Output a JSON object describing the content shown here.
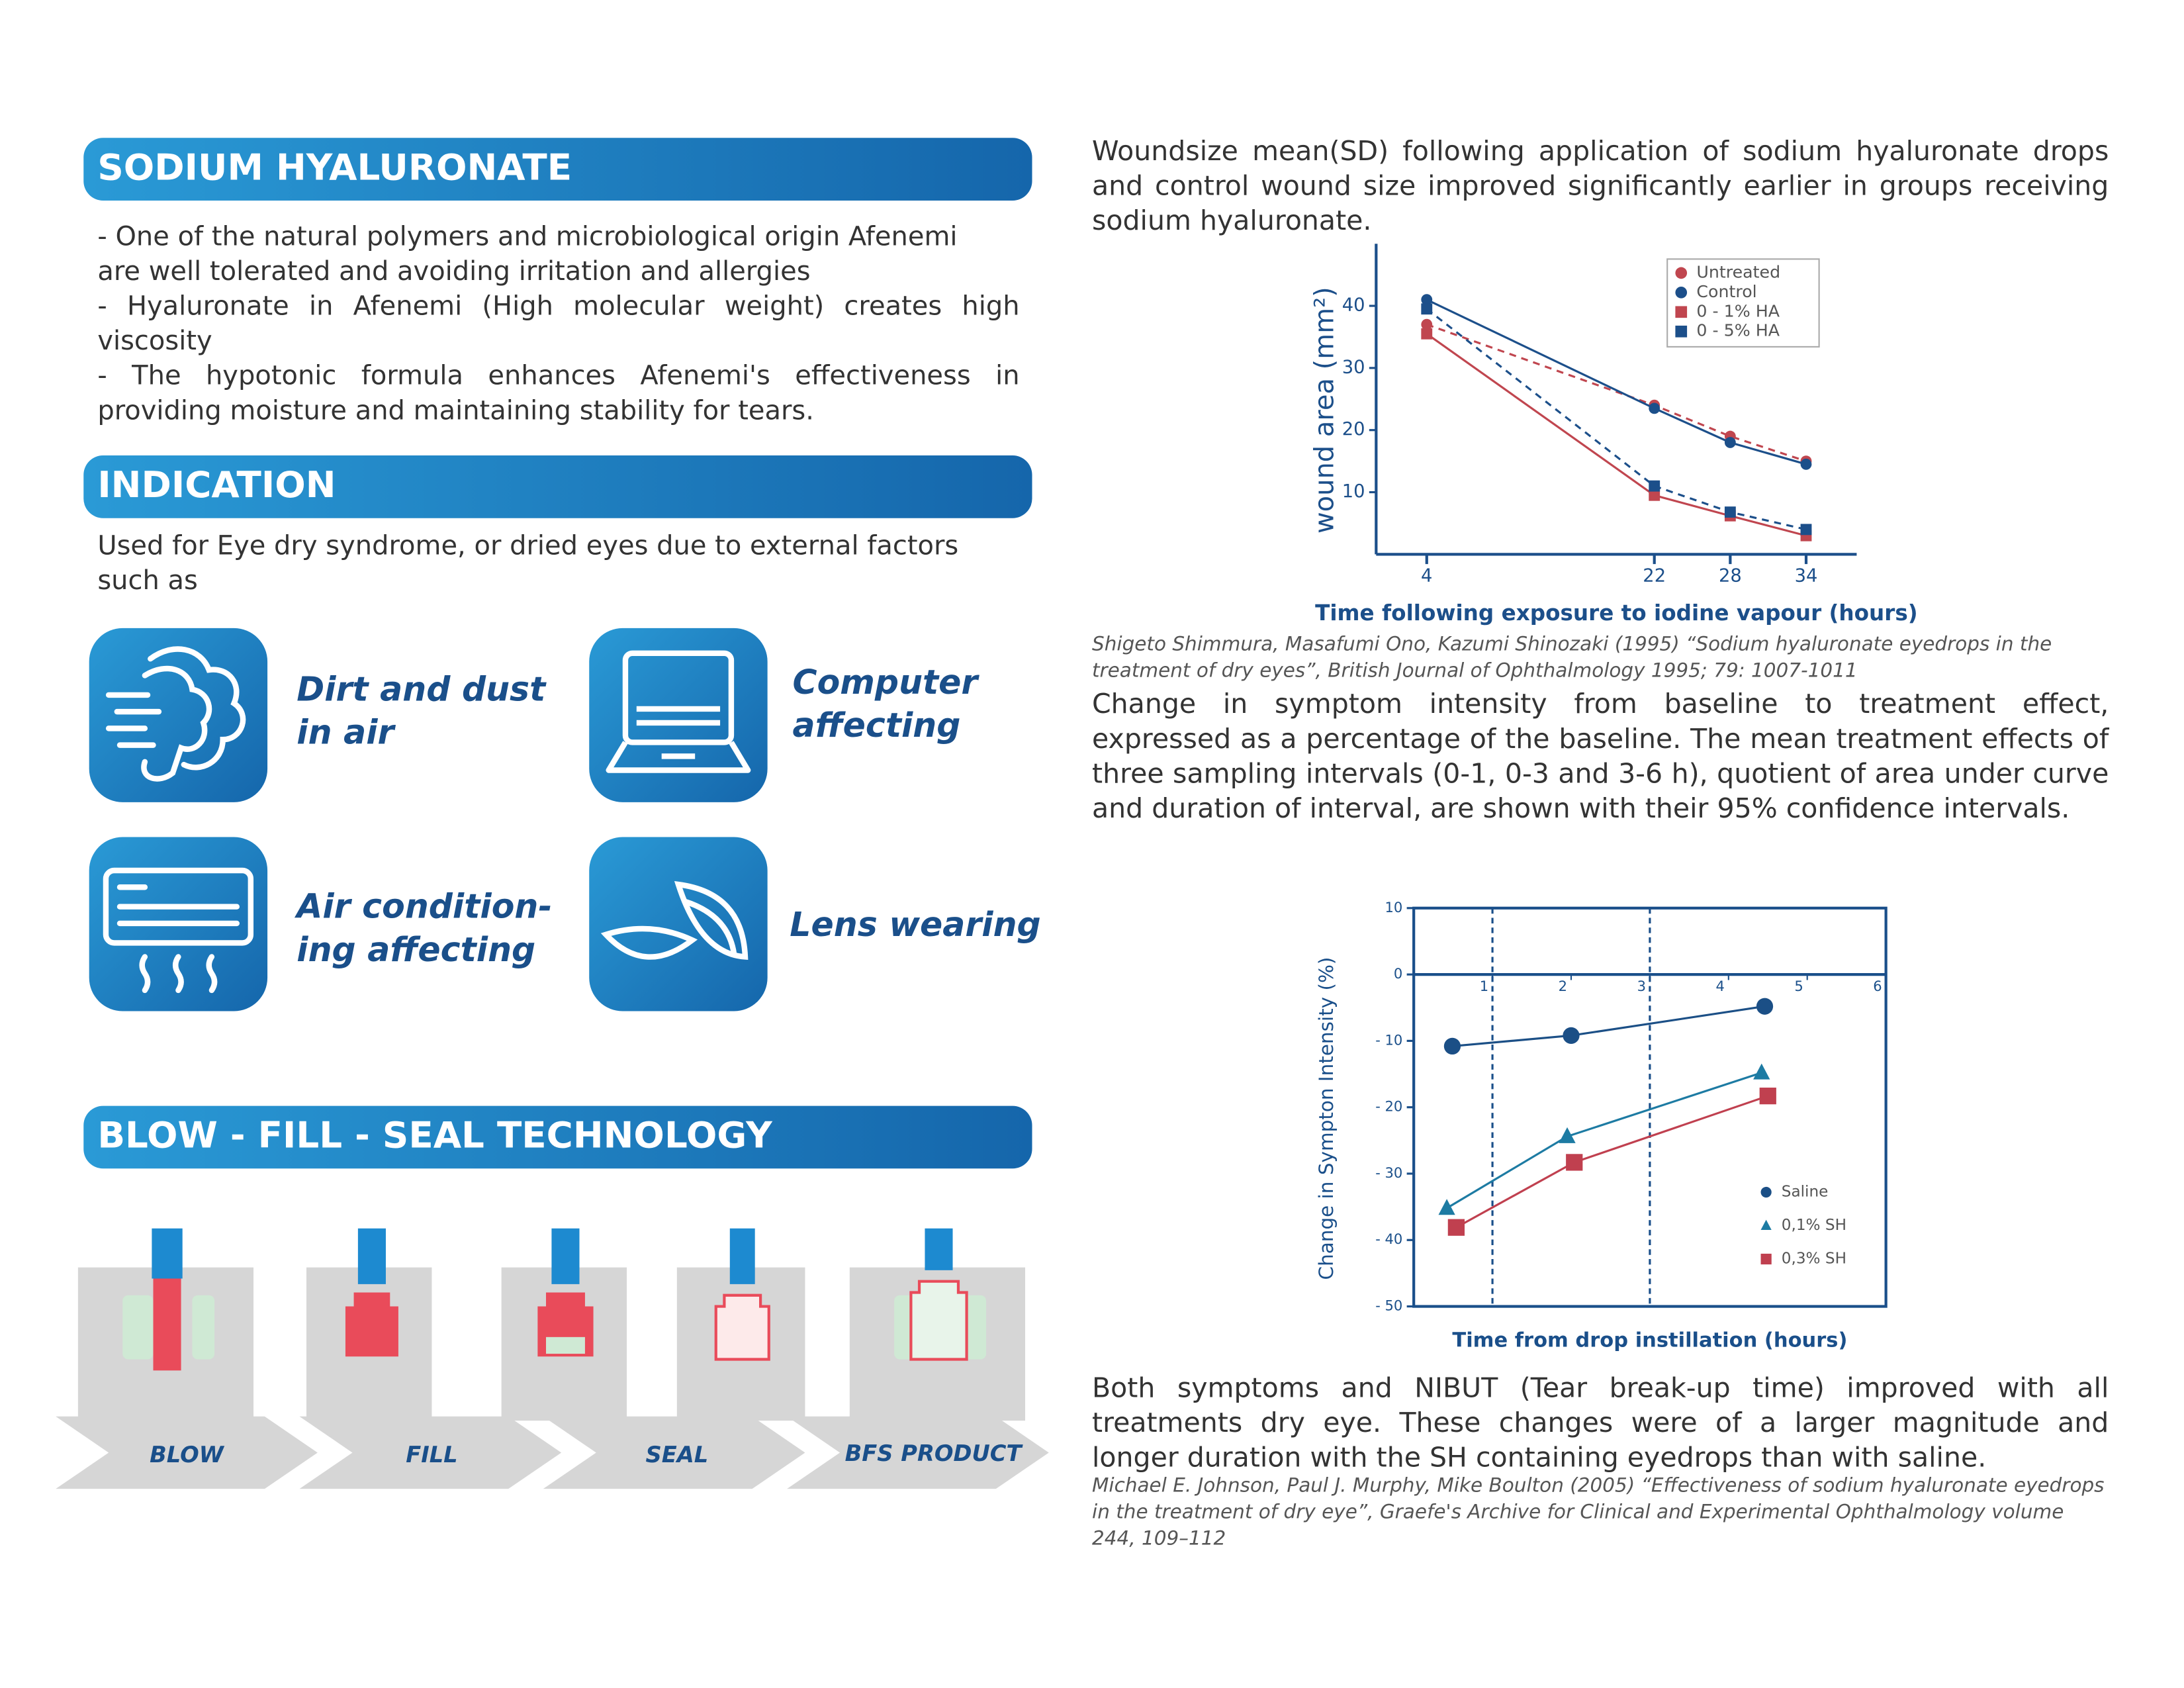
{
  "sections": [
    {
      "title": "SODIUM HYALURONATE",
      "lines": [
        "- One of the natural polymers and microbiological origin Afenemi are well tolerated and avoiding irritation and allergies",
        "- Hyaluronate in Afenemi (High molecular weight) creates high viscosity",
        "- The hypotonic formula enhances Afenemi's effectiveness in providing moisture and maintaining stability for tears."
      ]
    },
    {
      "title": "INDICATION",
      "text": "Used for Eye dry syndrome, or dried eyes due to external factors such as",
      "items": [
        "Dirt and dust\nin air",
        "Computer\naffecting",
        "Air condition-\ning affecting",
        "Lens wearing"
      ]
    },
    {
      "title": "BLOW - FILL - SEAL TECHNOLOGY",
      "steps": [
        "BLOW",
        "FILL",
        "SEAL",
        "BFS PRODUCT"
      ]
    }
  ],
  "study": {
    "intro": "Woundsize mean(SD) following application of sodium hyaluronate drops and control wound size improved significantly earlier in groups receiving sodium hyaluronate.",
    "citation1": "Shigeto Shimmura, Masafumi Ono, Kazumi Shinozaki (1995) “Sodium hyaluronate eyedrops in the treatment of dry eyes”, British Journal of Ophthalmology 1995; 79: 1007-1011",
    "paragraph2": "Change in symptom intensity from baseline to treatment effect, expressed as a percentage of the baseline. The mean treatment effects of three sampling intervals (0-1, 0-3 and 3-6 h), quotient of area under curve and duration of interval, are shown with their 95% confidence intervals.",
    "paragraph3": "Both symptoms and NIBUT (Tear break-up time) improved with all treatments dry eye. These changes were of a larger magnitude and longer duration with the SH containing eyedrops than with saline.",
    "citation2": "Michael E. Johnson, Paul J. Murphy, Mike Boulton (2005) “Effectiveness of sodium hyaluronate eyedrops in the treatment of dry eye”, Graefe's Archive for Clinical and Experimental Ophthalmology volume 244, 109–112"
  },
  "chart_data": [
    {
      "type": "line",
      "y_label": "wound area (mm²)",
      "x_label": "Time following exposure to iodine vapour (hours)",
      "xlim": [
        0,
        38
      ],
      "xticks": [
        4,
        22,
        28,
        34
      ],
      "ylim": [
        0,
        50
      ],
      "yticks": [
        10,
        20,
        30,
        40
      ],
      "frame": false,
      "legend": "top-right",
      "series": [
        {
          "name": "Untreated",
          "color": "#c0464f",
          "marker": "circle",
          "dashed": true,
          "x": [
            4,
            22,
            28,
            34
          ],
          "values": [
            37,
            24,
            19,
            15
          ]
        },
        {
          "name": "Control",
          "color": "#1c4f8a",
          "marker": "circle",
          "dashed": false,
          "x": [
            4,
            22,
            28,
            34
          ],
          "values": [
            41,
            23.5,
            18,
            14.5
          ]
        },
        {
          "name": "0 - 1% HA",
          "color": "#c0464f",
          "marker": "square",
          "dashed": false,
          "x": [
            4,
            22,
            28,
            34
          ],
          "values": [
            35.5,
            9.5,
            6.2,
            3
          ]
        },
        {
          "name": "0 - 5% HA",
          "color": "#1c4f8a",
          "marker": "square",
          "dashed": true,
          "x": [
            4,
            22,
            28,
            34
          ],
          "values": [
            39.5,
            11,
            6.8,
            4
          ]
        }
      ]
    },
    {
      "type": "line",
      "y_label": "Change in Sympton Intensity (%)",
      "x_label": "Time from drop instillation (hours)",
      "xlim": [
        0,
        6
      ],
      "xticks": [
        1,
        2,
        3,
        4,
        5,
        6
      ],
      "ylim": [
        -50,
        10
      ],
      "yticks": [
        10,
        0,
        {
          "value": -10,
          "label": "- 10"
        },
        {
          "value": -20,
          "label": "- 20"
        },
        {
          "value": -30,
          "label": "- 30"
        },
        {
          "value": -40,
          "label": "- 40"
        },
        {
          "value": -50,
          "label": "- 50"
        }
      ],
      "vlines": [
        1,
        3
      ],
      "frame": true,
      "legend": "bottom-right",
      "series": [
        {
          "name": "Saline",
          "color": "#1b4f86",
          "marker": "circle",
          "dashed": false,
          "x": [
            0.49,
            2.0,
            4.46
          ],
          "values": [
            -10.8,
            -9.2,
            -4.8
          ]
        },
        {
          "name": "0,1% SH",
          "color": "#1d7ba3",
          "marker": "triangle",
          "dashed": false,
          "x": [
            0.42,
            1.95,
            4.42
          ],
          "values": [
            -35.2,
            -24.4,
            -14.8
          ]
        },
        {
          "name": "0,3% SH",
          "color": "#c0404f",
          "marker": "square",
          "dashed": false,
          "x": [
            0.54,
            2.04,
            4.5
          ],
          "values": [
            -38.1,
            -28.3,
            -18.3
          ]
        }
      ]
    }
  ]
}
